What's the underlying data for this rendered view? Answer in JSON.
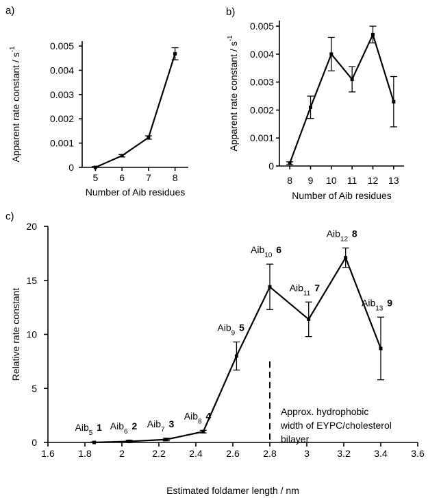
{
  "chart_data": [
    {
      "panel": "a)",
      "type": "line",
      "xlabel": "Number of Aib residues",
      "ylabel": "Apparent rate constant / s",
      "ylabel_sup": "-1",
      "xticks": [
        "5",
        "6",
        "7",
        "8"
      ],
      "yticks": [
        "0",
        "0.001",
        "0.002",
        "0.003",
        "0.004",
        "0.005"
      ],
      "xlim": [
        4.5,
        8.5
      ],
      "ylim": [
        0,
        0.0052
      ],
      "x": [
        5,
        6,
        7,
        8
      ],
      "y": [
        0.0,
        0.00048,
        0.00123,
        0.00468
      ],
      "yerr": [
        4e-05,
        5e-05,
        7e-05,
        0.00025
      ]
    },
    {
      "panel": "b)",
      "type": "line",
      "xlabel": "Number of Aib residues",
      "ylabel": "Apparent rate constant / s",
      "ylabel_sup": "-1",
      "xticks": [
        "8",
        "9",
        "10",
        "11",
        "12",
        "13"
      ],
      "yticks": [
        "0",
        "0.001",
        "0.002",
        "0.003",
        "0.004",
        "0.005"
      ],
      "xlim": [
        7.5,
        13.5
      ],
      "ylim": [
        0,
        0.0052
      ],
      "x": [
        8,
        9,
        10,
        11,
        12,
        13
      ],
      "y": [
        0.0001,
        0.0021,
        0.004,
        0.0031,
        0.0047,
        0.0023
      ],
      "yerr": [
        5e-05,
        0.0004,
        0.0006,
        0.00045,
        0.0003,
        0.0009
      ]
    },
    {
      "panel": "c)",
      "type": "line",
      "xlabel": "Estimated foldamer length / nm",
      "ylabel": "Relative rate constant",
      "xticks": [
        "1.6",
        "1.8",
        "2",
        "2.2",
        "2.4",
        "2.6",
        "2.8",
        "3",
        "3.2",
        "3.4",
        "3.6"
      ],
      "yticks": [
        "0",
        "5",
        "10",
        "15",
        "20"
      ],
      "xlim": [
        1.6,
        3.6
      ],
      "ylim": [
        0,
        20
      ],
      "x": [
        1.85,
        2.04,
        2.24,
        2.44,
        2.62,
        2.8,
        3.01,
        3.21,
        3.4
      ],
      "y": [
        0.0,
        0.1,
        0.27,
        1.0,
        8.0,
        14.4,
        11.4,
        17.1,
        8.7
      ],
      "yerr": [
        0.05,
        0.1,
        0.12,
        0.12,
        1.3,
        2.1,
        1.6,
        0.9,
        2.9
      ],
      "point_labels": [
        {
          "base": "Aib",
          "sub": "5",
          "num": "1"
        },
        {
          "base": "Aib",
          "sub": "6",
          "num": "2"
        },
        {
          "base": "Aib",
          "sub": "7",
          "num": "3"
        },
        {
          "base": "Aib",
          "sub": "8",
          "num": "4"
        },
        {
          "base": "Aib",
          "sub": "9",
          "num": "5"
        },
        {
          "base": "Aib",
          "sub": "10",
          "num": "6"
        },
        {
          "base": "Aib",
          "sub": "11",
          "num": "7"
        },
        {
          "base": "Aib",
          "sub": "12",
          "num": "8"
        },
        {
          "base": "Aib",
          "sub": "13",
          "num": "9"
        }
      ],
      "marker_line_x": 2.8,
      "marker_line_ymax": 7.5,
      "marker_note": [
        "Approx. hydrophobic",
        "width of EYPC/cholesterol",
        "bilayer"
      ]
    }
  ]
}
